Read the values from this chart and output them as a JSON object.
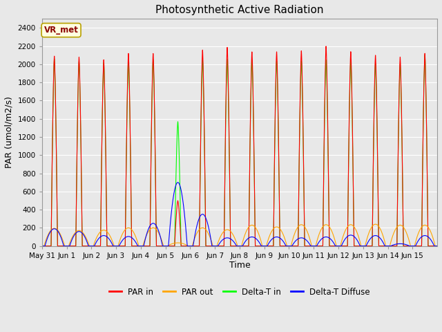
{
  "title": "Photosynthetic Active Radiation",
  "ylabel": "PAR (umol/m2/s)",
  "xlabel": "Time",
  "legend_label": "VR_met",
  "series_labels": [
    "PAR in",
    "PAR out",
    "Delta-T in",
    "Delta-T Diffuse"
  ],
  "series_colors": [
    "red",
    "orange",
    "lime",
    "blue"
  ],
  "ylim": [
    0,
    2500
  ],
  "fig_bg": "#e8e8e8",
  "plot_bg": "#e8e8e8",
  "n_days": 16,
  "tick_labels": [
    "May 31",
    "Jun 1",
    "Jun 2",
    "Jun 3",
    "Jun 4",
    "Jun 5",
    "Jun 6",
    "Jun 7",
    "Jun 8",
    "Jun 9",
    "Jun 10",
    "Jun 11",
    "Jun 12",
    "Jun 13",
    "Jun 14",
    "Jun 15"
  ],
  "peak_PAR_in": [
    2090,
    2080,
    2050,
    2120,
    2120,
    500,
    2160,
    2190,
    2140,
    2140,
    2150,
    2200,
    2140,
    2100,
    2080,
    2120
  ],
  "peak_PAR_out": [
    195,
    170,
    175,
    200,
    200,
    35,
    200,
    180,
    230,
    210,
    235,
    235,
    235,
    240,
    230,
    230
  ],
  "peak_DT_in": [
    2060,
    2030,
    2020,
    2050,
    2050,
    1370,
    2050,
    2060,
    2050,
    2040,
    2040,
    2050,
    2050,
    2010,
    2000,
    2100
  ],
  "peak_DT_dif": [
    190,
    160,
    115,
    105,
    250,
    700,
    350,
    90,
    100,
    100,
    90,
    100,
    120,
    115,
    25,
    115
  ]
}
